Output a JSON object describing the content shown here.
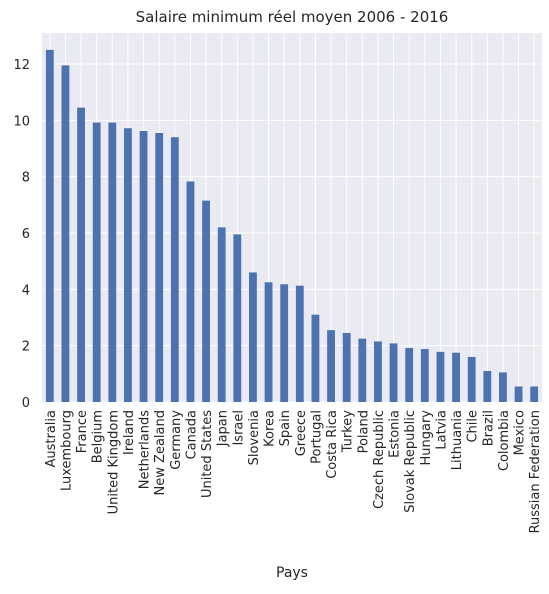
{
  "chart_data": {
    "type": "bar",
    "title": "Salaire minimum réel moyen 2006 - 2016",
    "x_label": "Pays",
    "categories": [
      "Australia",
      "Luxembourg",
      "France",
      "Belgium",
      "United Kingdom",
      "Ireland",
      "Netherlands",
      "New Zealand",
      "Germany",
      "Canada",
      "United States",
      "Japan",
      "Israel",
      "Slovenia",
      "Korea",
      "Spain",
      "Greece",
      "Portugal",
      "Costa Rica",
      "Turkey",
      "Poland",
      "Czech Republic",
      "Estonia",
      "Slovak Republic",
      "Hungary",
      "Latvia",
      "Lithuania",
      "Chile",
      "Brazil",
      "Colombia",
      "Mexico",
      "Russian Federation"
    ],
    "values": [
      12.5,
      11.95,
      10.45,
      9.92,
      9.92,
      9.72,
      9.62,
      9.55,
      9.4,
      7.83,
      7.15,
      6.2,
      5.95,
      4.6,
      4.25,
      4.18,
      4.13,
      3.1,
      2.55,
      2.45,
      2.25,
      2.15,
      2.08,
      1.92,
      1.88,
      1.78,
      1.75,
      1.6,
      1.1,
      1.05,
      0.55,
      0.55
    ],
    "color": "#4c72b0",
    "ylim": [
      0,
      13.1
    ],
    "yticks": [
      0,
      2,
      4,
      6,
      8,
      10,
      12
    ],
    "grid": true
  }
}
